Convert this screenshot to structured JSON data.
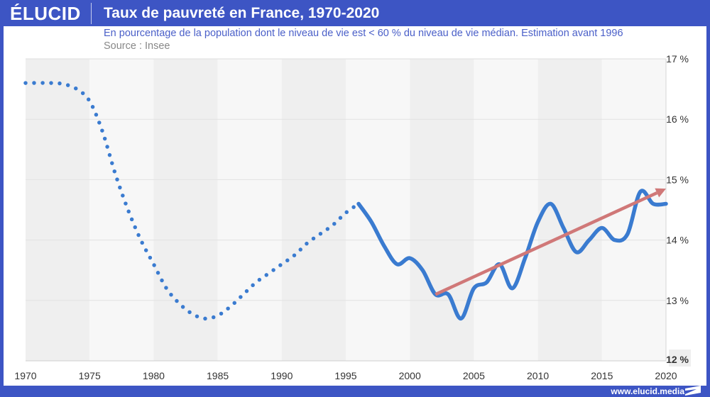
{
  "header": {
    "logo": "ÉLUCID",
    "title": "Taux de pauvreté en France, 1970-2020"
  },
  "subtitle": "En pourcentage de la population dont le niveau de vie est < 60 % du niveau de vie médian. Estimation avant 1996",
  "source": "Source : Insee",
  "footer": {
    "url": "www.elucid.media"
  },
  "colors": {
    "brand": "#3d55c4",
    "series": "#3a7bd0",
    "trend": "#d07878",
    "band_dark": "#efefef",
    "band_light": "#f7f7f7"
  },
  "chart_data": {
    "type": "line",
    "title": "Taux de pauvreté en France, 1970-2020",
    "xlabel": "",
    "ylabel": "",
    "xlim": [
      1970,
      2020
    ],
    "ylim": [
      12,
      17
    ],
    "x_ticks": [
      "1970",
      "1975",
      "1980",
      "1985",
      "1990",
      "1995",
      "2000",
      "2005",
      "2010",
      "2015",
      "2020"
    ],
    "y_ticks": [
      "12 %",
      "13 %",
      "14 %",
      "15 %",
      "16 %",
      "17 %"
    ],
    "grid": true,
    "y_axis_side": "right",
    "series": [
      {
        "name": "Estimation (avant 1996)",
        "style": "dotted",
        "x": [
          1970,
          1972,
          1973,
          1974,
          1975,
          1976,
          1977,
          1978,
          1979,
          1980,
          1981,
          1982,
          1983,
          1984,
          1985,
          1986,
          1987,
          1988,
          1989,
          1990,
          1991,
          1992,
          1993,
          1994,
          1995,
          1996
        ],
        "values": [
          16.6,
          16.6,
          16.58,
          16.5,
          16.3,
          15.8,
          15.1,
          14.5,
          14.0,
          13.6,
          13.2,
          12.95,
          12.78,
          12.7,
          12.75,
          12.9,
          13.1,
          13.3,
          13.45,
          13.6,
          13.75,
          13.95,
          14.1,
          14.25,
          14.45,
          14.6
        ]
      },
      {
        "name": "Taux de pauvreté",
        "style": "solid",
        "x": [
          1996,
          1997,
          1998,
          1999,
          2000,
          2001,
          2002,
          2003,
          2004,
          2005,
          2006,
          2007,
          2008,
          2009,
          2010,
          2011,
          2012,
          2013,
          2014,
          2015,
          2016,
          2017,
          2018,
          2019,
          2020
        ],
        "values": [
          14.6,
          14.3,
          13.9,
          13.6,
          13.7,
          13.5,
          13.1,
          13.1,
          12.7,
          13.2,
          13.3,
          13.6,
          13.2,
          13.7,
          14.3,
          14.6,
          14.2,
          13.8,
          14.0,
          14.2,
          14.0,
          14.1,
          14.8,
          14.6,
          14.6
        ]
      }
    ],
    "annotations": [
      {
        "type": "arrow",
        "from": [
          2002,
          13.1
        ],
        "to": [
          2020,
          14.85
        ]
      }
    ]
  }
}
